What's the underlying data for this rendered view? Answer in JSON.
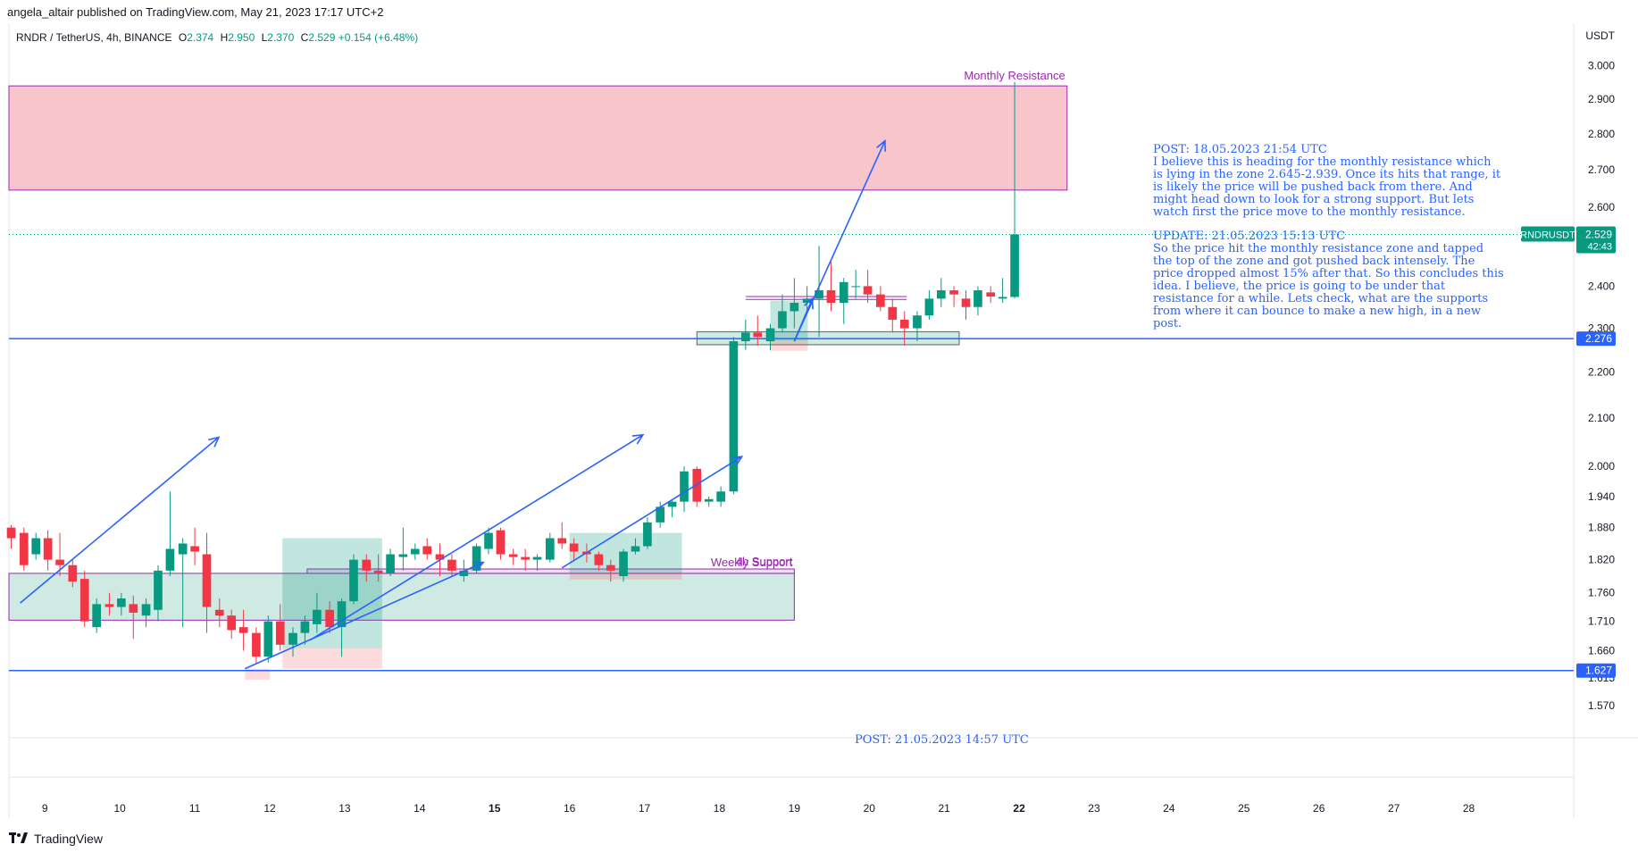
{
  "header": {
    "published": "angela_altair published on TradingView.com, May 21, 2023 17:17 UTC+2"
  },
  "symbol": {
    "name": "RNDR / TetherUS, 4h, BINANCE",
    "o_label": "O",
    "o": "2.374",
    "h_label": "H",
    "h": "2.950",
    "l_label": "L",
    "l": "2.370",
    "c_label": "C",
    "c": "2.529",
    "change": "+0.154 (+6.48%)"
  },
  "footer": {
    "brand": "TradingView"
  },
  "colors": {
    "up": "#089981",
    "down": "#f23645",
    "blue": "#2962ff",
    "purple": "#9c27b0"
  },
  "chart_data": {
    "type": "candlestick",
    "title": "RNDR / TetherUS, 4h, BINANCE",
    "y_axis": {
      "unit": "USDT",
      "scale": "log",
      "range": [
        1.52,
        3.12
      ],
      "ticks": [
        "3.000",
        "2.900",
        "2.800",
        "2.700",
        "2.600",
        "2.400",
        "2.300",
        "2.200",
        "2.100",
        "2.000",
        "1.940",
        "1.880",
        "1.820",
        "1.760",
        "1.710",
        "1.660",
        "1.615",
        "1.570"
      ]
    },
    "x_axis": {
      "labels": [
        "9",
        "10",
        "11",
        "12",
        "13",
        "14",
        "15",
        "16",
        "17",
        "18",
        "19",
        "20",
        "21",
        "22",
        "23",
        "24",
        "25",
        "26",
        "27",
        "28"
      ],
      "label_day_positions": [
        9,
        10,
        11,
        12,
        13,
        14,
        15,
        16,
        17,
        18,
        19,
        20,
        21,
        22,
        23,
        24,
        25,
        26,
        27,
        28
      ],
      "bold_labels": [
        "15",
        "22"
      ],
      "range_days": [
        8.52,
        29.4
      ]
    },
    "candles": [
      {
        "t": 8.55,
        "o": 1.88,
        "h": 1.885,
        "l": 1.84,
        "c": 1.86
      },
      {
        "t": 8.72,
        "o": 1.87,
        "h": 1.88,
        "l": 1.8,
        "c": 1.81
      },
      {
        "t": 8.88,
        "o": 1.83,
        "h": 1.87,
        "l": 1.82,
        "c": 1.86
      },
      {
        "t": 9.04,
        "o": 1.86,
        "h": 1.875,
        "l": 1.8,
        "c": 1.82
      },
      {
        "t": 9.2,
        "o": 1.82,
        "h": 1.87,
        "l": 1.79,
        "c": 1.81
      },
      {
        "t": 9.37,
        "o": 1.81,
        "h": 1.82,
        "l": 1.77,
        "c": 1.78
      },
      {
        "t": 9.53,
        "o": 1.785,
        "h": 1.8,
        "l": 1.7,
        "c": 1.71
      },
      {
        "t": 9.69,
        "o": 1.7,
        "h": 1.75,
        "l": 1.69,
        "c": 1.74
      },
      {
        "t": 9.86,
        "o": 1.74,
        "h": 1.76,
        "l": 1.72,
        "c": 1.735
      },
      {
        "t": 10.02,
        "o": 1.735,
        "h": 1.76,
        "l": 1.72,
        "c": 1.75
      },
      {
        "t": 10.18,
        "o": 1.74,
        "h": 1.755,
        "l": 1.68,
        "c": 1.725
      },
      {
        "t": 10.35,
        "o": 1.72,
        "h": 1.75,
        "l": 1.7,
        "c": 1.74
      },
      {
        "t": 10.51,
        "o": 1.73,
        "h": 1.81,
        "l": 1.71,
        "c": 1.8
      },
      {
        "t": 10.67,
        "o": 1.8,
        "h": 1.95,
        "l": 1.79,
        "c": 1.84
      },
      {
        "t": 10.84,
        "o": 1.83,
        "h": 1.86,
        "l": 1.7,
        "c": 1.85
      },
      {
        "t": 11.0,
        "o": 1.845,
        "h": 1.88,
        "l": 1.81,
        "c": 1.835
      },
      {
        "t": 11.16,
        "o": 1.83,
        "h": 1.87,
        "l": 1.69,
        "c": 1.735
      },
      {
        "t": 11.33,
        "o": 1.73,
        "h": 1.75,
        "l": 1.7,
        "c": 1.72
      },
      {
        "t": 11.49,
        "o": 1.72,
        "h": 1.73,
        "l": 1.68,
        "c": 1.695
      },
      {
        "t": 11.65,
        "o": 1.7,
        "h": 1.73,
        "l": 1.66,
        "c": 1.69
      },
      {
        "t": 11.82,
        "o": 1.69,
        "h": 1.7,
        "l": 1.64,
        "c": 1.65
      },
      {
        "t": 11.98,
        "o": 1.65,
        "h": 1.72,
        "l": 1.64,
        "c": 1.71
      },
      {
        "t": 12.14,
        "o": 1.71,
        "h": 1.74,
        "l": 1.66,
        "c": 1.67
      },
      {
        "t": 12.31,
        "o": 1.67,
        "h": 1.7,
        "l": 1.65,
        "c": 1.69
      },
      {
        "t": 12.47,
        "o": 1.69,
        "h": 1.72,
        "l": 1.67,
        "c": 1.71
      },
      {
        "t": 12.63,
        "o": 1.705,
        "h": 1.76,
        "l": 1.69,
        "c": 1.73
      },
      {
        "t": 12.8,
        "o": 1.73,
        "h": 1.745,
        "l": 1.69,
        "c": 1.7
      },
      {
        "t": 12.96,
        "o": 1.7,
        "h": 1.75,
        "l": 1.65,
        "c": 1.745
      },
      {
        "t": 13.12,
        "o": 1.745,
        "h": 1.83,
        "l": 1.74,
        "c": 1.82
      },
      {
        "t": 13.29,
        "o": 1.82,
        "h": 1.83,
        "l": 1.78,
        "c": 1.8
      },
      {
        "t": 13.45,
        "o": 1.8,
        "h": 1.83,
        "l": 1.78,
        "c": 1.795
      },
      {
        "t": 13.61,
        "o": 1.795,
        "h": 1.84,
        "l": 1.79,
        "c": 1.83
      },
      {
        "t": 13.78,
        "o": 1.825,
        "h": 1.88,
        "l": 1.8,
        "c": 1.83
      },
      {
        "t": 13.94,
        "o": 1.83,
        "h": 1.85,
        "l": 1.82,
        "c": 1.84
      },
      {
        "t": 14.1,
        "o": 1.845,
        "h": 1.86,
        "l": 1.82,
        "c": 1.83
      },
      {
        "t": 14.27,
        "o": 1.83,
        "h": 1.85,
        "l": 1.79,
        "c": 1.82
      },
      {
        "t": 14.43,
        "o": 1.82,
        "h": 1.83,
        "l": 1.79,
        "c": 1.8
      },
      {
        "t": 14.59,
        "o": 1.79,
        "h": 1.82,
        "l": 1.78,
        "c": 1.8
      },
      {
        "t": 14.76,
        "o": 1.8,
        "h": 1.85,
        "l": 1.795,
        "c": 1.845
      },
      {
        "t": 14.92,
        "o": 1.84,
        "h": 1.88,
        "l": 1.83,
        "c": 1.87
      },
      {
        "t": 15.08,
        "o": 1.875,
        "h": 1.88,
        "l": 1.82,
        "c": 1.83
      },
      {
        "t": 15.25,
        "o": 1.83,
        "h": 1.84,
        "l": 1.81,
        "c": 1.825
      },
      {
        "t": 15.41,
        "o": 1.825,
        "h": 1.84,
        "l": 1.8,
        "c": 1.82
      },
      {
        "t": 15.57,
        "o": 1.82,
        "h": 1.83,
        "l": 1.8,
        "c": 1.825
      },
      {
        "t": 15.74,
        "o": 1.82,
        "h": 1.87,
        "l": 1.815,
        "c": 1.86
      },
      {
        "t": 15.9,
        "o": 1.86,
        "h": 1.89,
        "l": 1.84,
        "c": 1.85
      },
      {
        "t": 16.06,
        "o": 1.85,
        "h": 1.86,
        "l": 1.82,
        "c": 1.835
      },
      {
        "t": 16.23,
        "o": 1.835,
        "h": 1.85,
        "l": 1.815,
        "c": 1.83
      },
      {
        "t": 16.39,
        "o": 1.83,
        "h": 1.835,
        "l": 1.8,
        "c": 1.81
      },
      {
        "t": 16.55,
        "o": 1.81,
        "h": 1.82,
        "l": 1.78,
        "c": 1.8
      },
      {
        "t": 16.72,
        "o": 1.79,
        "h": 1.84,
        "l": 1.78,
        "c": 1.835
      },
      {
        "t": 16.88,
        "o": 1.835,
        "h": 1.86,
        "l": 1.83,
        "c": 1.845
      },
      {
        "t": 17.04,
        "o": 1.845,
        "h": 1.9,
        "l": 1.84,
        "c": 1.89
      },
      {
        "t": 17.21,
        "o": 1.89,
        "h": 1.93,
        "l": 1.88,
        "c": 1.92
      },
      {
        "t": 17.37,
        "o": 1.92,
        "h": 1.935,
        "l": 1.9,
        "c": 1.93
      },
      {
        "t": 17.53,
        "o": 1.93,
        "h": 2.0,
        "l": 1.91,
        "c": 1.99
      },
      {
        "t": 17.7,
        "o": 1.995,
        "h": 2.0,
        "l": 1.92,
        "c": 1.93
      },
      {
        "t": 17.86,
        "o": 1.93,
        "h": 1.94,
        "l": 1.92,
        "c": 1.935
      },
      {
        "t": 18.02,
        "o": 1.93,
        "h": 1.96,
        "l": 1.92,
        "c": 1.95
      },
      {
        "t": 18.19,
        "o": 1.95,
        "h": 2.28,
        "l": 1.945,
        "c": 2.27
      },
      {
        "t": 18.35,
        "o": 2.27,
        "h": 2.32,
        "l": 2.25,
        "c": 2.29
      },
      {
        "t": 18.51,
        "o": 2.29,
        "h": 2.33,
        "l": 2.26,
        "c": 2.28
      },
      {
        "t": 18.68,
        "o": 2.27,
        "h": 2.31,
        "l": 2.25,
        "c": 2.3
      },
      {
        "t": 18.84,
        "o": 2.3,
        "h": 2.38,
        "l": 2.29,
        "c": 2.34
      },
      {
        "t": 19.0,
        "o": 2.34,
        "h": 2.42,
        "l": 2.3,
        "c": 2.36
      },
      {
        "t": 19.17,
        "o": 2.36,
        "h": 2.4,
        "l": 2.34,
        "c": 2.37
      },
      {
        "t": 19.33,
        "o": 2.37,
        "h": 2.5,
        "l": 2.28,
        "c": 2.39
      },
      {
        "t": 19.49,
        "o": 2.39,
        "h": 2.46,
        "l": 2.34,
        "c": 2.36
      },
      {
        "t": 19.66,
        "o": 2.36,
        "h": 2.42,
        "l": 2.31,
        "c": 2.41
      },
      {
        "t": 19.82,
        "o": 2.4,
        "h": 2.44,
        "l": 2.37,
        "c": 2.4
      },
      {
        "t": 19.98,
        "o": 2.4,
        "h": 2.44,
        "l": 2.36,
        "c": 2.38
      },
      {
        "t": 20.15,
        "o": 2.38,
        "h": 2.4,
        "l": 2.34,
        "c": 2.35
      },
      {
        "t": 20.31,
        "o": 2.35,
        "h": 2.37,
        "l": 2.29,
        "c": 2.32
      },
      {
        "t": 20.47,
        "o": 2.32,
        "h": 2.34,
        "l": 2.26,
        "c": 2.3
      },
      {
        "t": 20.64,
        "o": 2.3,
        "h": 2.34,
        "l": 2.27,
        "c": 2.33
      },
      {
        "t": 20.8,
        "o": 2.33,
        "h": 2.39,
        "l": 2.32,
        "c": 2.37
      },
      {
        "t": 20.96,
        "o": 2.37,
        "h": 2.42,
        "l": 2.35,
        "c": 2.39
      },
      {
        "t": 21.13,
        "o": 2.39,
        "h": 2.4,
        "l": 2.35,
        "c": 2.38
      },
      {
        "t": 21.29,
        "o": 2.37,
        "h": 2.39,
        "l": 2.32,
        "c": 2.35
      },
      {
        "t": 21.45,
        "o": 2.35,
        "h": 2.4,
        "l": 2.33,
        "c": 2.39
      },
      {
        "t": 21.62,
        "o": 2.385,
        "h": 2.4,
        "l": 2.36,
        "c": 2.375
      },
      {
        "t": 21.78,
        "o": 2.37,
        "h": 2.42,
        "l": 2.36,
        "c": 2.374
      },
      {
        "t": 21.94,
        "o": 2.374,
        "h": 2.95,
        "l": 2.37,
        "c": 2.529
      }
    ],
    "zones": [
      {
        "name": "monthly-resistance-zone",
        "label": "Monthly Resistance",
        "low": 2.645,
        "high": 2.939,
        "from": 8.52,
        "to": 22.64,
        "color": "#f7c5ca"
      },
      {
        "name": "weekly-support-zone",
        "label": "Weekly Support",
        "low": 1.712,
        "high": 1.795,
        "from": 8.52,
        "to": 19.0,
        "color": "#cfe9e3"
      },
      {
        "name": "4h-support-zone",
        "label": "4h Support",
        "low": 1.795,
        "high": 1.803,
        "from": 12.5,
        "to": 19.0,
        "color": "#eedcf1"
      },
      {
        "name": "breakout-retest-zone",
        "label": "",
        "low": 2.262,
        "high": 2.292,
        "from": 17.7,
        "to": 21.2,
        "color": "#cfe9e3"
      }
    ],
    "position_boxes": [
      {
        "from": 12.17,
        "to": 13.5,
        "entry": 1.664,
        "target": 1.86,
        "stop": 1.63
      },
      {
        "from": 16.0,
        "to": 17.5,
        "entry": 1.795,
        "target": 1.87,
        "stop": 1.784
      },
      {
        "from": 18.68,
        "to": 19.18,
        "entry": 2.27,
        "target": 2.365,
        "stop": 2.248
      }
    ],
    "pink_marker": {
      "from": 11.67,
      "to": 12.0,
      "low": 1.612,
      "high": 1.63
    },
    "horizontal_lines": [
      {
        "name": "support-line",
        "value": 2.276,
        "label": "2.276"
      },
      {
        "name": "lower-support-line",
        "value": 1.627,
        "label": "1.627"
      }
    ],
    "range_lines": [
      {
        "value": 2.375,
        "from": 18.35,
        "to": 20.5
      },
      {
        "value": 2.368,
        "from": 18.35,
        "to": 20.5
      }
    ],
    "arrows": [
      {
        "x1": 8.67,
        "y1": 1.742,
        "x2": 11.32,
        "y2": 2.06
      },
      {
        "x1": 11.67,
        "y1": 1.63,
        "x2": 14.85,
        "y2": 1.815
      },
      {
        "x1": 12.54,
        "y1": 1.678,
        "x2": 16.98,
        "y2": 2.065
      },
      {
        "x1": 15.9,
        "y1": 1.805,
        "x2": 18.3,
        "y2": 2.02
      },
      {
        "x1": 19.0,
        "y1": 2.27,
        "x2": 20.21,
        "y2": 2.78
      },
      {
        "x1": 19.0,
        "y1": 2.27,
        "x2": 19.24,
        "y2": 2.37
      }
    ],
    "price_label": {
      "symbol": "RNDRUSDT",
      "value": "2.529",
      "countdown": "42:43",
      "price": 2.529
    },
    "notes": {
      "post_title": "POST: 18.05.2023 21:54 UTC",
      "post_lines": [
        "I believe this is heading for the monthly resistance which",
        "is lying in the zone 2.645-2.939. Once its hits that range, it",
        "is likely the price will be pushed back from there. And",
        "might head down to look for a strong support. But lets",
        "watch first the price move to the monthly resistance."
      ],
      "update_title": "UPDATE: 21.05.2023 15:13 UTC",
      "update_lines": [
        "So the price hit the monthly resistance zone and tapped",
        "the top of the zone and got pushed back intensely. The",
        "price dropped almost 15% after that. So this concludes this",
        "idea. I believe, the price is going to be under that",
        "resistance for a while. Lets check, what are the supports",
        "from where it can bounce to make a new high, in a new",
        "post."
      ],
      "bottom_post": "POST: 21.05.2023 14:57 UTC"
    }
  }
}
